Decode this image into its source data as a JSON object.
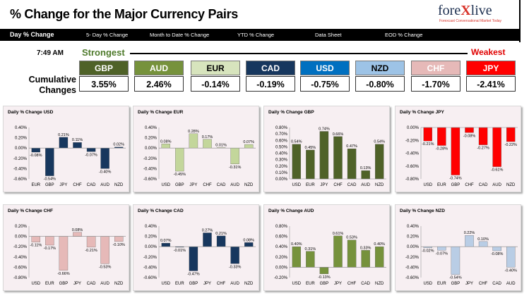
{
  "header": {
    "title": "% Change for the Major Currency Pairs",
    "logo_text": "forexlive",
    "logo_tagline": "Forexcast Conversational Market Today"
  },
  "tabs": [
    {
      "label": "Day % Change",
      "active": true
    },
    {
      "label": "5- Day % Change",
      "active": false
    },
    {
      "label": "Month to Date % Change",
      "active": false
    },
    {
      "label": "YTD % Change",
      "active": false
    },
    {
      "label": "Data Sheet",
      "active": false
    },
    {
      "label": "EOD % Change",
      "active": false
    }
  ],
  "summary": {
    "time": "7:49 AM",
    "strongest_label": "Strongest",
    "weakest_label": "Weakest",
    "cumulative_label": "Cumulative Changes",
    "currencies": [
      {
        "name": "GBP",
        "value": "3.55%",
        "bg": "#4f6228",
        "fg": "#ffffff"
      },
      {
        "name": "AUD",
        "value": "2.46%",
        "bg": "#76923c",
        "fg": "#ffffff"
      },
      {
        "name": "EUR",
        "value": "-0.14%",
        "bg": "#d7e4bd",
        "fg": "#000000"
      },
      {
        "name": "CAD",
        "value": "-0.19%",
        "bg": "#17375e",
        "fg": "#ffffff"
      },
      {
        "name": "USD",
        "value": "-0.75%",
        "bg": "#0070c0",
        "fg": "#ffffff"
      },
      {
        "name": "NZD",
        "value": "-0.80%",
        "bg": "#9dc3e6",
        "fg": "#000000"
      },
      {
        "name": "CHF",
        "value": "-1.70%",
        "bg": "#e6b9b8",
        "fg": "#ffffff"
      },
      {
        "name": "JPY",
        "value": "-2.41%",
        "bg": "#ff0000",
        "fg": "#ffffff"
      }
    ]
  },
  "chart_data": [
    {
      "type": "bar",
      "title": "Daily % Change USD",
      "color": "#17375e",
      "categories": [
        "EUR",
        "GBP",
        "JPY",
        "CHF",
        "CAD",
        "AUD",
        "NZD"
      ],
      "values": [
        -0.08,
        -0.54,
        0.21,
        0.11,
        -0.07,
        -0.4,
        0.02
      ],
      "labels": [
        "-0.08%",
        "-0.54%",
        "0.21%",
        "0.11%",
        "-0.07%",
        "-0.40%",
        "0.02%"
      ],
      "yticks": [
        "0.40%",
        "0.20%",
        "0.00%",
        "-0.20%",
        "-0.40%",
        "-0.60%"
      ],
      "ylim": [
        -0.6,
        0.4
      ]
    },
    {
      "type": "bar",
      "title": "Daily % Change EUR",
      "color": "#c3d69b",
      "categories": [
        "USD",
        "GBP",
        "JPY",
        "CHF",
        "CAD",
        "AUD",
        "NZD"
      ],
      "values": [
        0.08,
        -0.45,
        0.28,
        0.17,
        0.01,
        -0.31,
        0.07
      ],
      "labels": [
        "0.08%",
        "-0.45%",
        "0.28%",
        "0.17%",
        "0.01%",
        "-0.31%",
        "0.07%"
      ],
      "yticks": [
        "0.40%",
        "0.20%",
        "0.00%",
        "-0.20%",
        "-0.40%",
        "-0.60%"
      ],
      "ylim": [
        -0.6,
        0.4
      ]
    },
    {
      "type": "bar",
      "title": "Daily % Change GBP",
      "color": "#4f6228",
      "categories": [
        "USD",
        "EUR",
        "JPY",
        "CHF",
        "CAD",
        "AUD",
        "NZD"
      ],
      "values": [
        0.54,
        0.45,
        0.74,
        0.66,
        0.47,
        0.13,
        0.54
      ],
      "labels": [
        "0.54%",
        "0.45%",
        "0.74%",
        "0.66%",
        "0.47%",
        "0.13%",
        "0.54%"
      ],
      "yticks": [
        "0.80%",
        "0.70%",
        "0.60%",
        "0.50%",
        "0.40%",
        "0.30%",
        "0.20%",
        "0.10%",
        "0.00%"
      ],
      "ylim": [
        0,
        0.8
      ]
    },
    {
      "type": "bar",
      "title": "Daily % Change JPY",
      "color": "#ff0000",
      "categories": [
        "USD",
        "EUR",
        "GBP",
        "CHF",
        "CAD",
        "AUD",
        "NZD"
      ],
      "values": [
        -0.21,
        -0.28,
        -0.74,
        -0.08,
        -0.27,
        -0.61,
        -0.22
      ],
      "labels": [
        "-0.21%",
        "-0.28%",
        "-0.74%",
        "-0.08%",
        "-0.27%",
        "-0.61%",
        "-0.22%"
      ],
      "yticks": [
        "0.00%",
        "-0.20%",
        "-0.40%",
        "-0.60%",
        "-0.80%"
      ],
      "ylim": [
        -0.8,
        0
      ]
    },
    {
      "type": "bar",
      "title": "Daily % Change CHF",
      "color": "#e6b9b8",
      "categories": [
        "USD",
        "EUR",
        "GBP",
        "JPY",
        "CAD",
        "AUD",
        "NZD"
      ],
      "values": [
        -0.11,
        -0.17,
        -0.66,
        0.08,
        -0.21,
        -0.53,
        -0.1
      ],
      "labels": [
        "-0.11%",
        "-0.17%",
        "-0.66%",
        "0.08%",
        "-0.21%",
        "-0.53%",
        "-0.10%"
      ],
      "yticks": [
        "0.20%",
        "0.00%",
        "-0.20%",
        "-0.40%",
        "-0.60%",
        "-0.80%"
      ],
      "ylim": [
        -0.8,
        0.2
      ]
    },
    {
      "type": "bar",
      "title": "Daily % Change CAD",
      "color": "#17375e",
      "categories": [
        "USD",
        "EUR",
        "GBP",
        "JPY",
        "CHF",
        "AUD",
        "NZD"
      ],
      "values": [
        0.07,
        -0.01,
        -0.47,
        0.27,
        0.21,
        -0.33,
        0.08
      ],
      "labels": [
        "0.07%",
        "-0.01%",
        "-0.47%",
        "0.27%",
        "0.21%",
        "-0.33%",
        "0.08%"
      ],
      "yticks": [
        "0.40%",
        "0.20%",
        "0.00%",
        "-0.20%",
        "-0.40%",
        "-0.60%"
      ],
      "ylim": [
        -0.6,
        0.4
      ]
    },
    {
      "type": "bar",
      "title": "Daily % Change AUD",
      "color": "#76923c",
      "categories": [
        "USD",
        "EUR",
        "GBP",
        "JPY",
        "CHF",
        "CAD",
        "NZD"
      ],
      "values": [
        0.4,
        0.31,
        -0.13,
        0.61,
        0.53,
        0.33,
        0.4
      ],
      "labels": [
        "0.40%",
        "0.31%",
        "-0.13%",
        "0.61%",
        "0.53%",
        "0.33%",
        "0.40%"
      ],
      "yticks": [
        "0.80%",
        "0.60%",
        "0.40%",
        "0.20%",
        "0.00%",
        "-0.20%"
      ],
      "ylim": [
        -0.2,
        0.8
      ]
    },
    {
      "type": "bar",
      "title": "Daily % Change NZD",
      "color": "#b9cde5",
      "categories": [
        "USD",
        "EUR",
        "GBP",
        "JPY",
        "CHF",
        "CAD",
        "AUD"
      ],
      "values": [
        -0.02,
        -0.07,
        -0.54,
        0.22,
        0.1,
        -0.08,
        -0.4
      ],
      "labels": [
        "-0.02%",
        "-0.07%",
        "-0.54%",
        "0.22%",
        "0.10%",
        "-0.08%",
        "-0.40%"
      ],
      "yticks": [
        "0.40%",
        "0.20%",
        "0.00%",
        "-0.20%",
        "-0.40%",
        "-0.60%"
      ],
      "ylim": [
        -0.6,
        0.4
      ]
    }
  ]
}
